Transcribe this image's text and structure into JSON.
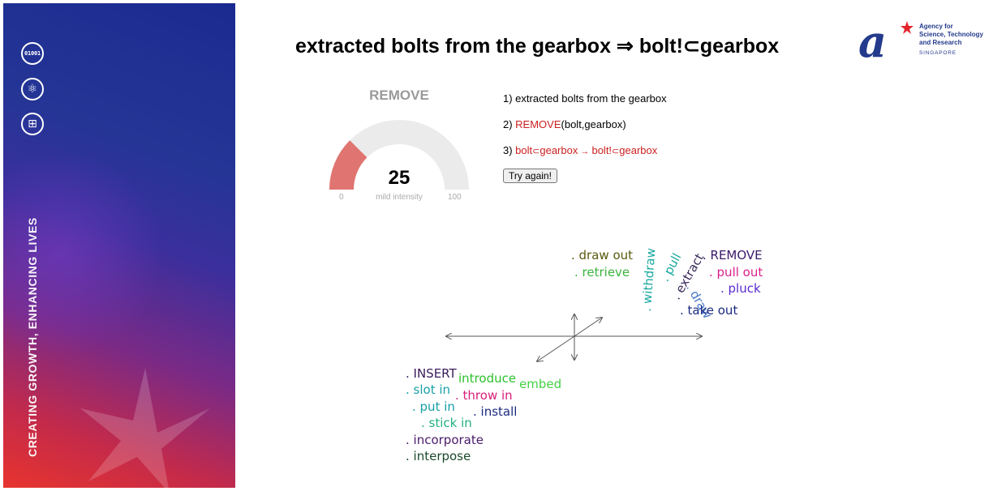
{
  "sidebar": {
    "tagline": "CREATING GROWTH, ENHANCING LIVES",
    "icons": [
      {
        "name": "binary-data-icon",
        "glyph": "01001"
      },
      {
        "name": "atom-icon",
        "glyph": "⚛"
      },
      {
        "name": "circuit-brain-icon",
        "glyph": "⊞"
      }
    ]
  },
  "header": {
    "title": "extracted bolts from the gearbox ⇒ bolt!⊂gearbox",
    "logo": {
      "mark": "a",
      "line1": "Agency for",
      "line2": "Science, Technology",
      "line3": "and Research",
      "line4": "SINGAPORE"
    }
  },
  "gauge": {
    "label": "REMOVE",
    "value": "25",
    "fraction": 0.25,
    "caption": "mild intensity",
    "min": "0",
    "max": "100",
    "fill_color": "#e07470",
    "track_color": "#ebebeb"
  },
  "steps": {
    "s1": "1) extracted bolts from the gearbox",
    "s2_prefix": "2) ",
    "s2_verb": "REMOVE",
    "s2_args": "(bolt,gearbox)",
    "s3_prefix": "3) ",
    "s3_a": "bolt",
    "s3_sub1": "⊂",
    "s3_b": "gearbox",
    "s3_arrow": " → ",
    "s3_c": "bolt!",
    "s3_sub2": "⊂",
    "s3_d": "gearbox"
  },
  "button": {
    "label": "Try again!"
  },
  "wordcloud": {
    "remove_cluster": [
      {
        "text": ". draw out",
        "color": "#5a5a10"
      },
      {
        "text": ". retrieve",
        "color": "#3cb43c"
      },
      {
        "text": ". withdraw",
        "color": "#18a8a0"
      },
      {
        "text": ". pull",
        "color": "#18a8a0"
      },
      {
        "text": ". extract",
        "color": "#3a2a5a"
      },
      {
        "text": ". REMOVE",
        "color": "#3a1a6a"
      },
      {
        "text": ". pull out",
        "color": "#d8208a"
      },
      {
        "text": ". draw",
        "color": "#4a78c8"
      },
      {
        "text": ". pluck",
        "color": "#5a2ad0"
      },
      {
        "text": ". take out",
        "color": "#1a2a80"
      }
    ],
    "insert_cluster": [
      {
        "text": ". INSERT",
        "color": "#3a1a5a"
      },
      {
        "text": "introduce",
        "color": "#2ec02e"
      },
      {
        "text": "embed",
        "color": "#44d044"
      },
      {
        "text": ". slot in",
        "color": "#18a0a8"
      },
      {
        "text": ". throw in",
        "color": "#d8207a"
      },
      {
        "text": ". put in",
        "color": "#18a0a8"
      },
      {
        "text": ". install",
        "color": "#1a2a80"
      },
      {
        "text": ". stick in",
        "color": "#20b080"
      },
      {
        "text": ". incorporate",
        "color": "#4a1a6a"
      },
      {
        "text": ". interpose",
        "color": "#1a4a2a"
      }
    ]
  }
}
